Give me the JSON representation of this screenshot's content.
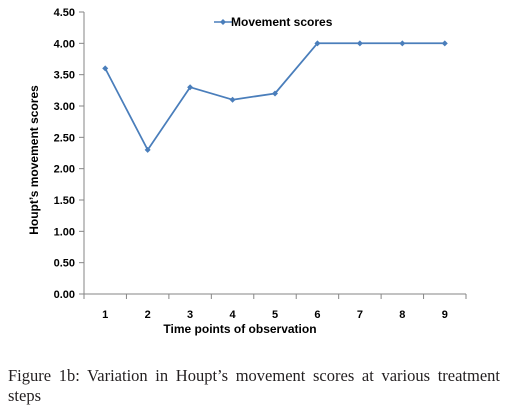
{
  "chart_data": {
    "type": "line",
    "title": "",
    "xlabel": "Time points of observation",
    "ylabel": "Houpt’s movement scores",
    "categories": [
      "1",
      "2",
      "3",
      "4",
      "5",
      "6",
      "7",
      "8",
      "9"
    ],
    "y_ticks": [
      "0.00",
      "0.50",
      "1.00",
      "1.50",
      "2.00",
      "2.50",
      "3.00",
      "3.50",
      "4.00",
      "4.50"
    ],
    "ylim": [
      0,
      4.5
    ],
    "grid": false,
    "legend_position": "top-right",
    "series": [
      {
        "name": "Movement scores",
        "color": "#4a7ebb",
        "marker": "diamond",
        "values": [
          3.6,
          2.3,
          3.3,
          3.1,
          3.2,
          4.0,
          4.0,
          4.0,
          4.0
        ]
      }
    ]
  },
  "caption": "Figure 1b: Variation in Houpt’s movement scores at various treatment steps"
}
